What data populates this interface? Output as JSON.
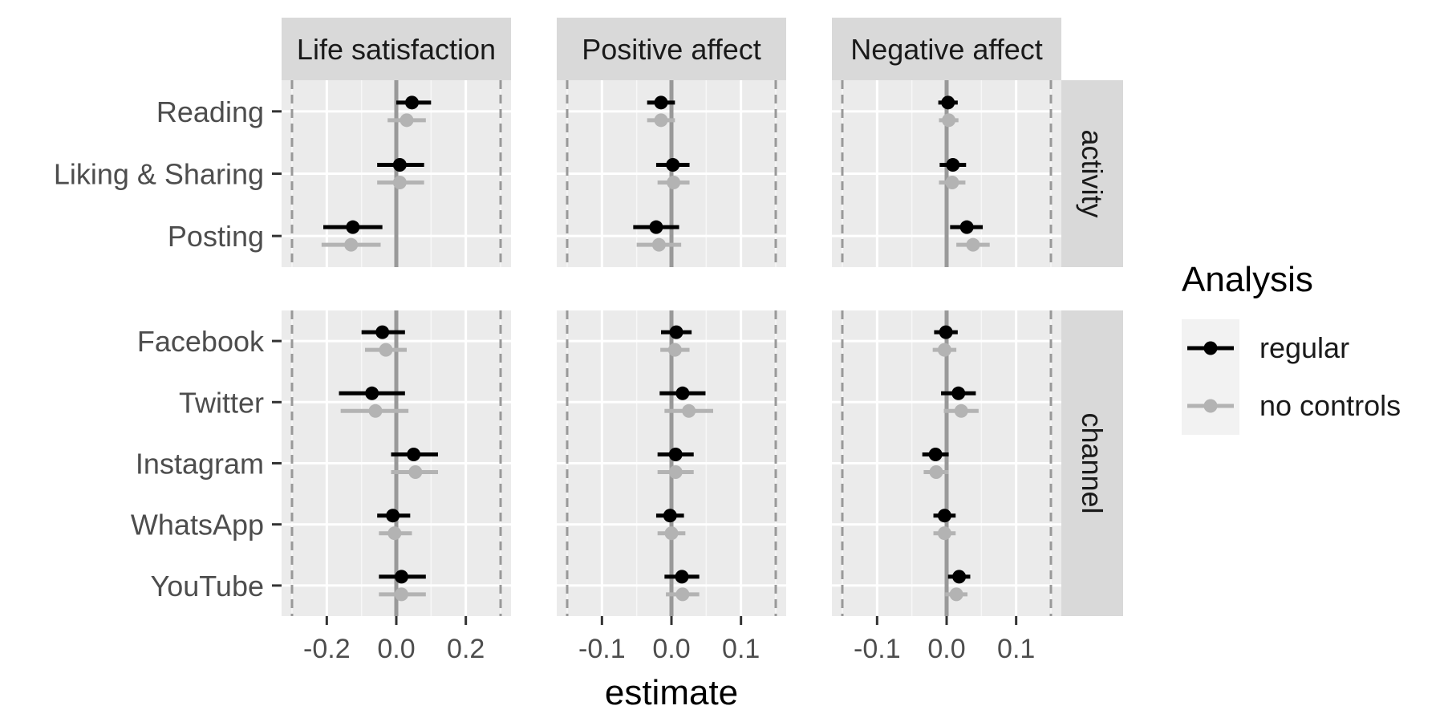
{
  "chart_data": {
    "type": "forest",
    "xlabel": "estimate",
    "columns": [
      {
        "title": "Life satisfaction",
        "xlim": [
          -0.33,
          0.33
        ],
        "ticks": [
          -0.2,
          0.0,
          0.2
        ],
        "tick_labels": [
          "-0.2",
          "0.0",
          "0.2"
        ],
        "ref_dashed": [
          -0.3,
          0.3
        ]
      },
      {
        "title": "Positive affect",
        "xlim": [
          -0.165,
          0.165
        ],
        "ticks": [
          -0.1,
          0.0,
          0.1
        ],
        "tick_labels": [
          "-0.1",
          "0.0",
          "0.1"
        ],
        "ref_dashed": [
          -0.15,
          0.15
        ]
      },
      {
        "title": "Negative affect",
        "xlim": [
          -0.165,
          0.165
        ],
        "ticks": [
          -0.1,
          0.0,
          0.1
        ],
        "tick_labels": [
          "-0.1",
          "0.0",
          "0.1"
        ],
        "ref_dashed": [
          -0.15,
          0.15
        ]
      }
    ],
    "rows": [
      {
        "title": "activity",
        "categories": [
          "Reading",
          "Liking & Sharing",
          "Posting"
        ]
      },
      {
        "title": "channel",
        "categories": [
          "Facebook",
          "Twitter",
          "Instagram",
          "WhatsApp",
          "YouTube"
        ]
      }
    ],
    "legend": {
      "title": "Analysis",
      "placement": "right",
      "entries": [
        {
          "label": "regular",
          "color": "#000000"
        },
        {
          "label": "no controls",
          "color": "#b3b3b3"
        }
      ]
    },
    "series": [
      {
        "name": "regular",
        "color": "#000000",
        "values": [
          [
            [
              [
                0.045,
                0.0,
                0.1
              ],
              [
                0.01,
                -0.055,
                0.08
              ],
              [
                -0.125,
                -0.21,
                -0.04
              ]
            ],
            [
              [
                -0.015,
                -0.035,
                0.005
              ],
              [
                0.002,
                -0.022,
                0.026
              ],
              [
                -0.022,
                -0.055,
                0.011
              ]
            ],
            [
              [
                0.002,
                -0.012,
                0.016
              ],
              [
                0.009,
                -0.01,
                0.028
              ],
              [
                0.029,
                0.005,
                0.052
              ]
            ]
          ],
          [
            [
              [
                -0.04,
                -0.1,
                0.025
              ],
              [
                -0.07,
                -0.165,
                0.025
              ],
              [
                0.05,
                -0.015,
                0.12
              ],
              [
                -0.01,
                -0.055,
                0.04
              ],
              [
                0.015,
                -0.05,
                0.085
              ]
            ],
            [
              [
                0.007,
                -0.015,
                0.029
              ],
              [
                0.016,
                -0.017,
                0.049
              ],
              [
                0.006,
                -0.02,
                0.032
              ],
              [
                -0.002,
                -0.022,
                0.018
              ],
              [
                0.015,
                -0.01,
                0.04
              ]
            ],
            [
              [
                -0.001,
                -0.018,
                0.016
              ],
              [
                0.017,
                -0.008,
                0.042
              ],
              [
                -0.016,
                -0.035,
                0.003
              ],
              [
                -0.003,
                -0.019,
                0.013
              ],
              [
                0.018,
                0.002,
                0.034
              ]
            ]
          ]
        ]
      },
      {
        "name": "no controls",
        "color": "#b3b3b3",
        "values": [
          [
            [
              [
                0.03,
                -0.025,
                0.085
              ],
              [
                0.01,
                -0.055,
                0.08
              ],
              [
                -0.13,
                -0.215,
                -0.045
              ]
            ],
            [
              [
                -0.015,
                -0.035,
                0.005
              ],
              [
                0.003,
                -0.02,
                0.026
              ],
              [
                -0.018,
                -0.05,
                0.014
              ]
            ],
            [
              [
                0.003,
                -0.011,
                0.017
              ],
              [
                0.008,
                -0.011,
                0.027
              ],
              [
                0.038,
                0.014,
                0.062
              ]
            ]
          ],
          [
            [
              [
                -0.03,
                -0.09,
                0.03
              ],
              [
                -0.06,
                -0.16,
                0.035
              ],
              [
                0.055,
                -0.015,
                0.12
              ],
              [
                -0.005,
                -0.05,
                0.045
              ],
              [
                0.015,
                -0.05,
                0.085
              ]
            ],
            [
              [
                0.005,
                -0.016,
                0.026
              ],
              [
                0.025,
                -0.01,
                0.06
              ],
              [
                0.006,
                -0.02,
                0.032
              ],
              [
                0.0,
                -0.02,
                0.02
              ],
              [
                0.016,
                -0.008,
                0.04
              ]
            ],
            [
              [
                -0.003,
                -0.02,
                0.014
              ],
              [
                0.021,
                -0.004,
                0.046
              ],
              [
                -0.015,
                -0.033,
                0.003
              ],
              [
                -0.003,
                -0.019,
                0.013
              ],
              [
                0.014,
                -0.002,
                0.03
              ]
            ]
          ]
        ]
      }
    ]
  }
}
